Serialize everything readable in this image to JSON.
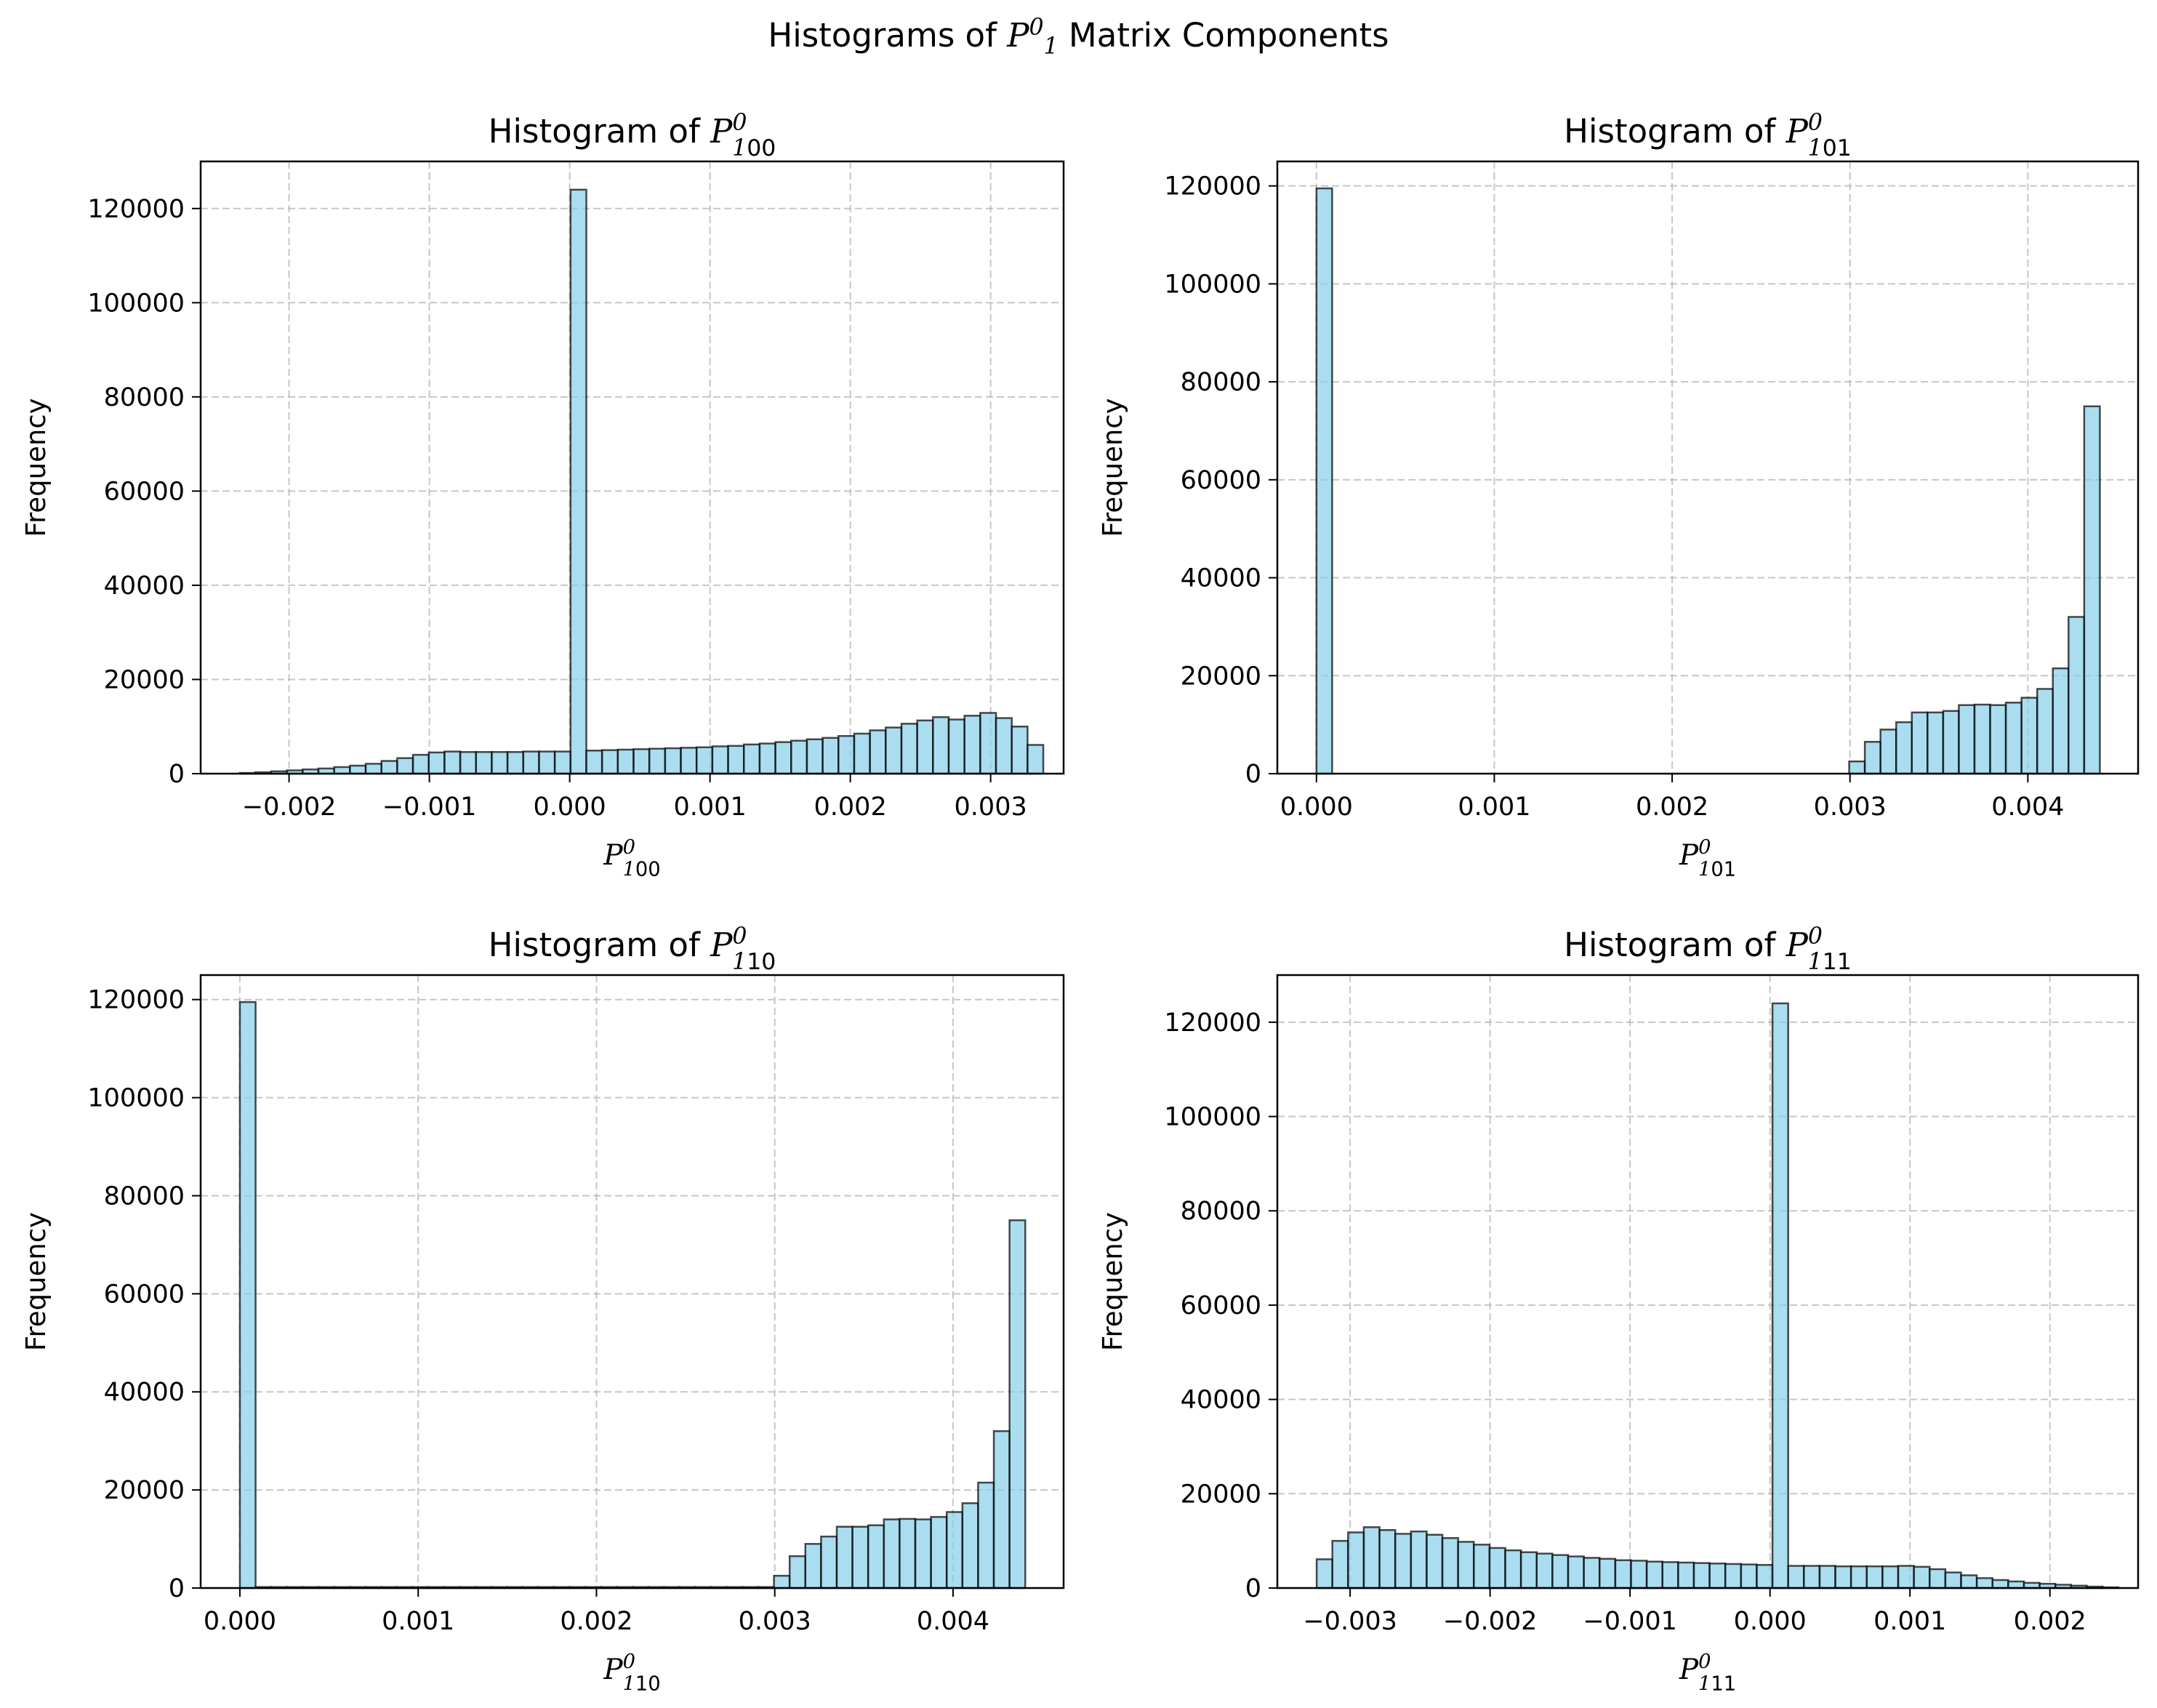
{
  "figure": {
    "suptitle_prefix": "Histograms of ",
    "suptitle_symbol": "P",
    "suptitle_sup": "0",
    "suptitle_sub": "1",
    "suptitle_suffix": " Matrix Components"
  },
  "colors": {
    "bar_fill": "#87CEEB",
    "bar_edge": "#000000",
    "grid": "#b0b0b0"
  },
  "chart_data": [
    {
      "type": "bar",
      "title_prefix": "Histogram of ",
      "symbol": "P",
      "sup": "0",
      "sub": "1",
      "index": "00",
      "xlabel_symbol": "P",
      "xlabel_sup": "0",
      "xlabel_sub": "1",
      "xlabel_index": "00",
      "ylabel": "Frequency",
      "xlim": [
        -0.00263,
        0.00352
      ],
      "ylim": [
        0,
        130000
      ],
      "xticks": [
        -0.002,
        -0.001,
        0.0,
        0.001,
        0.002,
        0.003
      ],
      "xtick_labels": [
        "−0.002",
        "−0.001",
        "0.000",
        "0.001",
        "0.002",
        "0.003"
      ],
      "yticks": [
        0,
        20000,
        40000,
        60000,
        80000,
        100000,
        120000
      ],
      "ytick_labels": [
        "0",
        "20000",
        "40000",
        "60000",
        "80000",
        "100000",
        "120000"
      ],
      "grid": true,
      "bin_start": -0.002352,
      "bin_width": 0.0001123,
      "values": [
        150,
        300,
        500,
        700,
        900,
        1100,
        1400,
        1700,
        2100,
        2700,
        3300,
        4000,
        4500,
        4700,
        4600,
        4600,
        4600,
        4600,
        4700,
        4700,
        4700,
        124000,
        4900,
        5000,
        5100,
        5200,
        5300,
        5400,
        5500,
        5600,
        5800,
        5900,
        6200,
        6400,
        6700,
        7000,
        7300,
        7600,
        8000,
        8500,
        9200,
        9800,
        10600,
        11300,
        12000,
        11500,
        12300,
        12900,
        11800,
        10000,
        6100
      ]
    },
    {
      "type": "bar",
      "title_prefix": "Histogram of ",
      "symbol": "P",
      "sup": "0",
      "sub": "1",
      "index": "01",
      "xlabel_symbol": "P",
      "xlabel_sup": "0",
      "xlabel_sub": "1",
      "xlabel_index": "01",
      "ylabel": "Frequency",
      "xlim": [
        -0.00022,
        0.00462
      ],
      "ylim": [
        0,
        125000
      ],
      "xticks": [
        0.0,
        0.001,
        0.002,
        0.003,
        0.004
      ],
      "xtick_labels": [
        "0.000",
        "0.001",
        "0.002",
        "0.003",
        "0.004"
      ],
      "yticks": [
        0,
        20000,
        40000,
        60000,
        80000,
        100000,
        120000
      ],
      "ytick_labels": [
        "0",
        "20000",
        "40000",
        "60000",
        "80000",
        "100000",
        "120000"
      ],
      "grid": true,
      "bin_start": 0.0,
      "bin_width": 8.81e-05,
      "values": [
        119500,
        0,
        0,
        0,
        0,
        0,
        0,
        0,
        0,
        0,
        0,
        0,
        0,
        0,
        0,
        0,
        0,
        0,
        0,
        0,
        0,
        0,
        0,
        0,
        0,
        0,
        0,
        0,
        0,
        0,
        0,
        0,
        0,
        0,
        2500,
        6500,
        9000,
        10500,
        12500,
        12500,
        12800,
        14000,
        14100,
        14000,
        14500,
        15500,
        17300,
        21500,
        32000,
        75000
      ]
    },
    {
      "type": "bar",
      "title_prefix": "Histogram of ",
      "symbol": "P",
      "sup": "0",
      "sub": "1",
      "index": "10",
      "xlabel_symbol": "P",
      "xlabel_sup": "0",
      "xlabel_sub": "1",
      "xlabel_index": "10",
      "ylabel": "Frequency",
      "xlim": [
        -0.00022,
        0.00462
      ],
      "ylim": [
        0,
        125000
      ],
      "xticks": [
        0.0,
        0.001,
        0.002,
        0.003,
        0.004
      ],
      "xtick_labels": [
        "0.000",
        "0.001",
        "0.002",
        "0.003",
        "0.004"
      ],
      "yticks": [
        0,
        20000,
        40000,
        60000,
        80000,
        100000,
        120000
      ],
      "ytick_labels": [
        "0",
        "20000",
        "40000",
        "60000",
        "80000",
        "100000",
        "120000"
      ],
      "grid": true,
      "bin_start": 0.0,
      "bin_width": 8.81e-05,
      "values": [
        119500,
        200,
        200,
        200,
        200,
        200,
        200,
        200,
        200,
        200,
        200,
        200,
        200,
        200,
        200,
        200,
        200,
        200,
        200,
        200,
        200,
        200,
        200,
        200,
        200,
        200,
        200,
        200,
        200,
        200,
        200,
        200,
        200,
        200,
        2500,
        6500,
        9000,
        10500,
        12500,
        12500,
        12800,
        14000,
        14100,
        14000,
        14500,
        15500,
        17300,
        21500,
        32000,
        75000
      ]
    },
    {
      "type": "bar",
      "title_prefix": "Histogram of ",
      "symbol": "P",
      "sup": "0",
      "sub": "1",
      "index": "11",
      "xlabel_symbol": "P",
      "xlabel_sup": "0",
      "xlabel_sub": "1",
      "xlabel_index": "11",
      "ylabel": "Frequency",
      "xlim": [
        -0.00352,
        0.00263
      ],
      "ylim": [
        0,
        130000
      ],
      "xticks": [
        -0.003,
        -0.002,
        -0.001,
        0.0,
        0.001,
        0.002
      ],
      "xtick_labels": [
        "−0.003",
        "−0.002",
        "−0.001",
        "0.000",
        "0.001",
        "0.002"
      ],
      "yticks": [
        0,
        20000,
        40000,
        60000,
        80000,
        100000,
        120000
      ],
      "ytick_labels": [
        "0",
        "20000",
        "40000",
        "60000",
        "80000",
        "100000",
        "120000"
      ],
      "grid": true,
      "bin_start": -0.003239,
      "bin_width": 0.0001123,
      "values": [
        6100,
        10000,
        11800,
        12900,
        12300,
        11500,
        12000,
        11300,
        10600,
        9800,
        9200,
        8500,
        8000,
        7600,
        7300,
        7000,
        6700,
        6400,
        6200,
        5900,
        5800,
        5600,
        5500,
        5400,
        5300,
        5200,
        5100,
        5000,
        4900,
        124000,
        4700,
        4700,
        4700,
        4600,
        4600,
        4600,
        4600,
        4700,
        4500,
        4000,
        3300,
        2700,
        2100,
        1700,
        1400,
        1100,
        900,
        700,
        500,
        300,
        150
      ]
    }
  ]
}
